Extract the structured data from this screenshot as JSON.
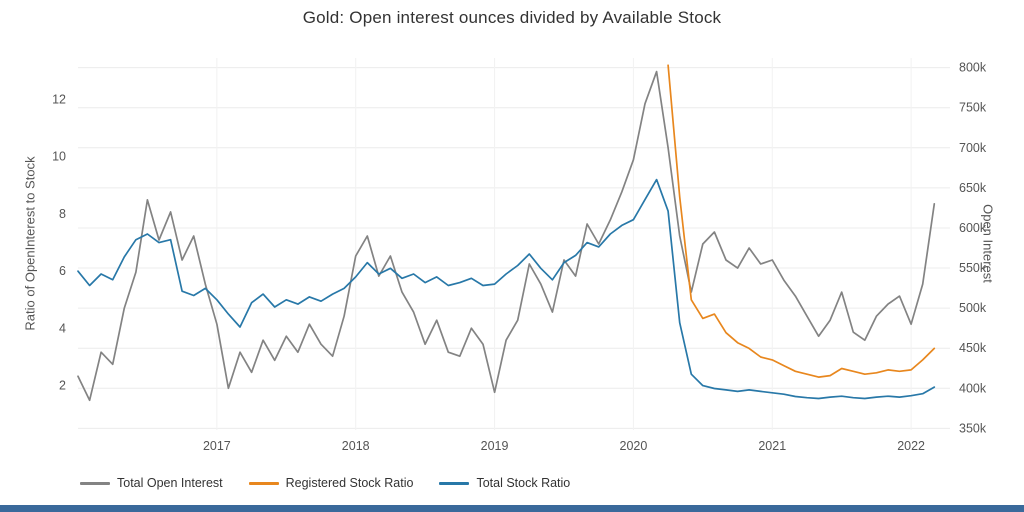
{
  "page": {
    "title": "Gold: Open interest ounces divided by Available Stock"
  },
  "footer_bar_color": "#3a699b",
  "chart_data": {
    "type": "line",
    "title": "Gold: Open interest ounces divided by Available Stock",
    "grid": "on",
    "legend_position": "bottom-left",
    "x_step": 0.0833333,
    "x_axis": {
      "ticks": [
        2017,
        2018,
        2019,
        2020,
        2021,
        2022
      ],
      "range": [
        2016.0,
        2022.28
      ]
    },
    "left_axis": {
      "label": "Ratio of OpenInterest to Stock",
      "ticks": [
        2,
        4,
        6,
        8,
        10,
        12
      ],
      "range": [
        0.45,
        13.45
      ]
    },
    "right_axis": {
      "label": "Open Interest",
      "ticks": [
        {
          "value": 350,
          "label": "350k"
        },
        {
          "value": 400,
          "label": "400k"
        },
        {
          "value": 450,
          "label": "450k"
        },
        {
          "value": 500,
          "label": "500k"
        },
        {
          "value": 550,
          "label": "550k"
        },
        {
          "value": 600,
          "label": "600k"
        },
        {
          "value": 650,
          "label": "650k"
        },
        {
          "value": 700,
          "label": "700k"
        },
        {
          "value": 750,
          "label": "750k"
        },
        {
          "value": 800,
          "label": "800k"
        }
      ],
      "range": [
        348,
        812
      ]
    },
    "series": [
      {
        "name": "Total Open Interest",
        "axis": "right",
        "color": "#838383",
        "x_start": 2016.0,
        "values": [
          415,
          385,
          445,
          430,
          500,
          545,
          635,
          585,
          620,
          560,
          590,
          530,
          480,
          400,
          445,
          420,
          460,
          435,
          465,
          445,
          480,
          455,
          440,
          490,
          565,
          590,
          540,
          565,
          520,
          495,
          455,
          485,
          445,
          440,
          475,
          455,
          395,
          460,
          485,
          555,
          530,
          495,
          560,
          540,
          605,
          580,
          610,
          645,
          685,
          755,
          795,
          700,
          590,
          520,
          580,
          595,
          560,
          550,
          575,
          555,
          560,
          535,
          515,
          490,
          465,
          485,
          520,
          470,
          460,
          490,
          505,
          515,
          480,
          530,
          630
        ]
      },
      {
        "name": "Registered Stock Ratio",
        "axis": "left",
        "color": "#e8871e",
        "x_start": 2020.25,
        "values": [
          13.2,
          8.6,
          5.0,
          4.35,
          4.5,
          3.85,
          3.5,
          3.3,
          3.0,
          2.9,
          2.7,
          2.5,
          2.4,
          2.3,
          2.35,
          2.6,
          2.5,
          2.4,
          2.45,
          2.55,
          2.5,
          2.55,
          2.9,
          3.3
        ]
      },
      {
        "name": "Total Stock Ratio",
        "axis": "left",
        "color": "#2878a8",
        "x_start": 2016.0,
        "values": [
          6.0,
          5.5,
          5.9,
          5.7,
          6.5,
          7.1,
          7.3,
          7.0,
          7.1,
          5.3,
          5.15,
          5.4,
          5.0,
          4.5,
          4.05,
          4.9,
          5.2,
          4.75,
          5.0,
          4.85,
          5.1,
          4.95,
          5.2,
          5.4,
          5.8,
          6.3,
          5.9,
          6.1,
          5.75,
          5.9,
          5.6,
          5.8,
          5.5,
          5.6,
          5.75,
          5.5,
          5.55,
          5.9,
          6.2,
          6.6,
          6.1,
          5.7,
          6.3,
          6.55,
          7.0,
          6.85,
          7.3,
          7.6,
          7.8,
          8.5,
          9.2,
          8.1,
          4.2,
          2.4,
          2.0,
          1.9,
          1.85,
          1.8,
          1.85,
          1.8,
          1.75,
          1.7,
          1.62,
          1.58,
          1.55,
          1.6,
          1.63,
          1.58,
          1.55,
          1.6,
          1.63,
          1.6,
          1.65,
          1.72,
          1.95
        ]
      }
    ]
  }
}
